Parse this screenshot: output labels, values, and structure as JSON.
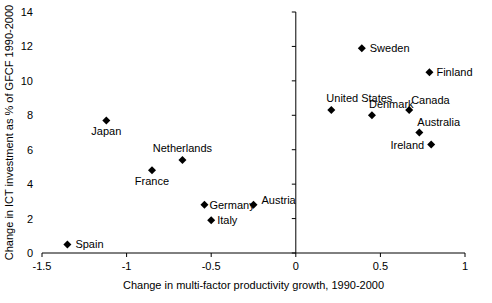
{
  "chart_data": {
    "type": "scatter",
    "x_label": "Change in multi-factor productivity growth, 1990-2000",
    "y_label": "Change in ICT investment as % of GFCF 1990-2000",
    "labels": [
      "Spain",
      "Japan",
      "France",
      "Netherlands",
      "Germany",
      "Italy",
      "Austria",
      "United States",
      "Sweden",
      "Denmark",
      "Canada",
      "Australia",
      "Finland",
      "Ireland"
    ],
    "x": [
      -1.35,
      -1.12,
      -0.85,
      -0.67,
      -0.54,
      -0.5,
      -0.25,
      0.21,
      0.39,
      0.45,
      0.67,
      0.73,
      0.79,
      0.8
    ],
    "values": [
      0.5,
      7.7,
      4.8,
      5.4,
      2.8,
      1.9,
      2.8,
      8.3,
      11.9,
      8.0,
      8.3,
      7.0,
      10.5,
      6.3
    ],
    "color": "#000000",
    "marker": "diamond",
    "xlim": [
      -1.5,
      1
    ],
    "xticks": [
      -1.5,
      -1,
      -0.5,
      0,
      0.5,
      1
    ],
    "ylim": [
      0,
      14
    ],
    "yticks": [
      0,
      2,
      4,
      6,
      8,
      10,
      12,
      14
    ],
    "grid": false
  }
}
